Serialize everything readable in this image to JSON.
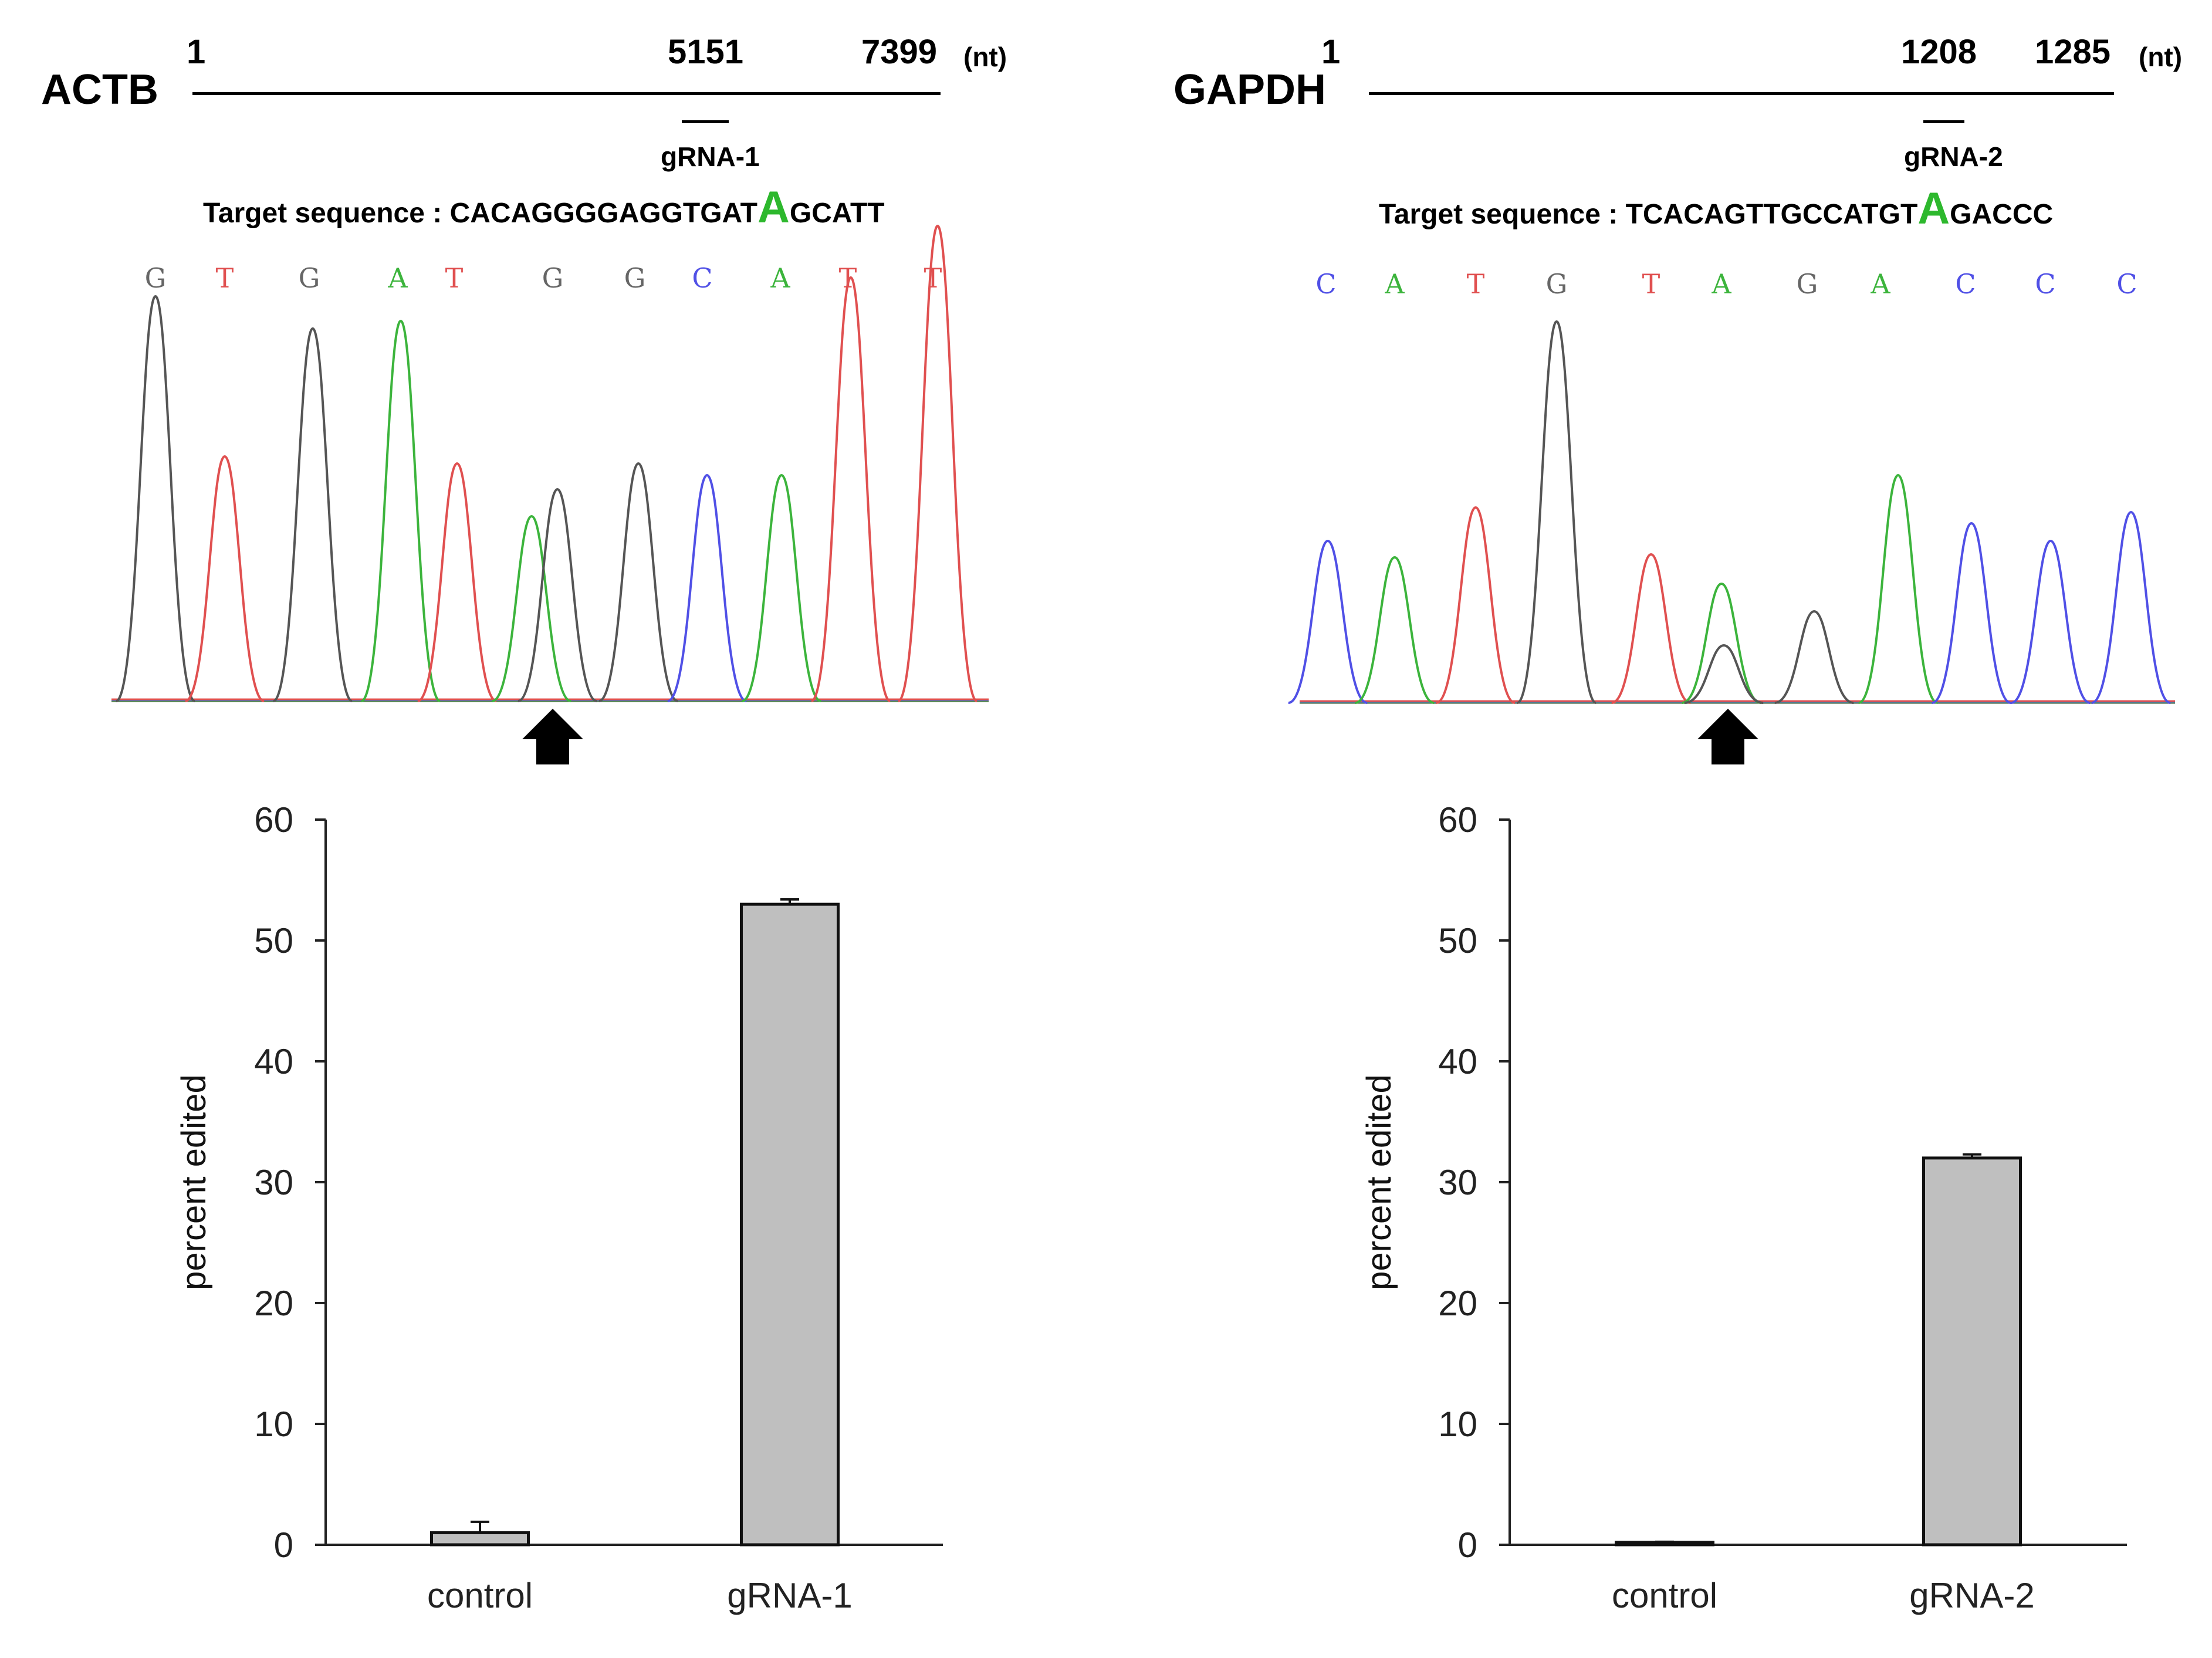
{
  "panels": [
    {
      "gene": "ACTB",
      "map": {
        "start": "1",
        "site": "5151",
        "end": "7399",
        "unit": "(nt)"
      },
      "grna_label": "gRNA-1",
      "target": {
        "prefix": "Target sequence : ",
        "before": "CACAGGGGAGGTGAT",
        "edited": "A",
        "after": "GCATT"
      },
      "chromatogram": {
        "bases": [
          {
            "letter": "G",
            "color": "#666666"
          },
          {
            "letter": "T",
            "color": "#e05050"
          },
          {
            "letter": "G",
            "color": "#666666"
          },
          {
            "letter": "A",
            "color": "#3cb43c"
          },
          {
            "letter": "T",
            "color": "#e05050"
          },
          {
            "letter": "G",
            "color": "#666666"
          },
          {
            "letter": "G",
            "color": "#666666"
          },
          {
            "letter": "C",
            "color": "#5050e6"
          },
          {
            "letter": "A",
            "color": "#3cb43c"
          },
          {
            "letter": "T",
            "color": "#e05050"
          },
          {
            "letter": "T",
            "color": "#e05050"
          }
        ]
      },
      "chart_data": {
        "type": "bar",
        "categories": [
          "control",
          "gRNA-1"
        ],
        "values": [
          1.0,
          53.0
        ],
        "errors": [
          0.9,
          0.4
        ],
        "ylabel": "percent edited",
        "ylim": [
          0,
          60
        ],
        "yticks": [
          0,
          10,
          20,
          30,
          40,
          50,
          60
        ]
      }
    },
    {
      "gene": "GAPDH",
      "map": {
        "start": "1",
        "site": "1208",
        "end": "1285",
        "unit": "(nt)"
      },
      "grna_label": "gRNA-2",
      "target": {
        "prefix": "Target sequence : ",
        "before": "TCACAGTTGCCATGT",
        "edited": "A",
        "after": "GACCC"
      },
      "chromatogram": {
        "bases": [
          {
            "letter": "C",
            "color": "#5050e6"
          },
          {
            "letter": "A",
            "color": "#3cb43c"
          },
          {
            "letter": "T",
            "color": "#e05050"
          },
          {
            "letter": "G",
            "color": "#666666"
          },
          {
            "letter": "T",
            "color": "#e05050"
          },
          {
            "letter": "A",
            "color": "#3cb43c"
          },
          {
            "letter": "G",
            "color": "#666666"
          },
          {
            "letter": "A",
            "color": "#3cb43c"
          },
          {
            "letter": "C",
            "color": "#5050e6"
          },
          {
            "letter": "C",
            "color": "#5050e6"
          },
          {
            "letter": "C",
            "color": "#5050e6"
          }
        ]
      },
      "chart_data": {
        "type": "bar",
        "categories": [
          "control",
          "gRNA-2"
        ],
        "values": [
          0.2,
          32.0
        ],
        "errors": [
          0.05,
          0.3
        ],
        "ylabel": "percent edited",
        "ylim": [
          0,
          60
        ],
        "yticks": [
          0,
          10,
          20,
          30,
          40,
          50,
          60
        ]
      }
    }
  ]
}
